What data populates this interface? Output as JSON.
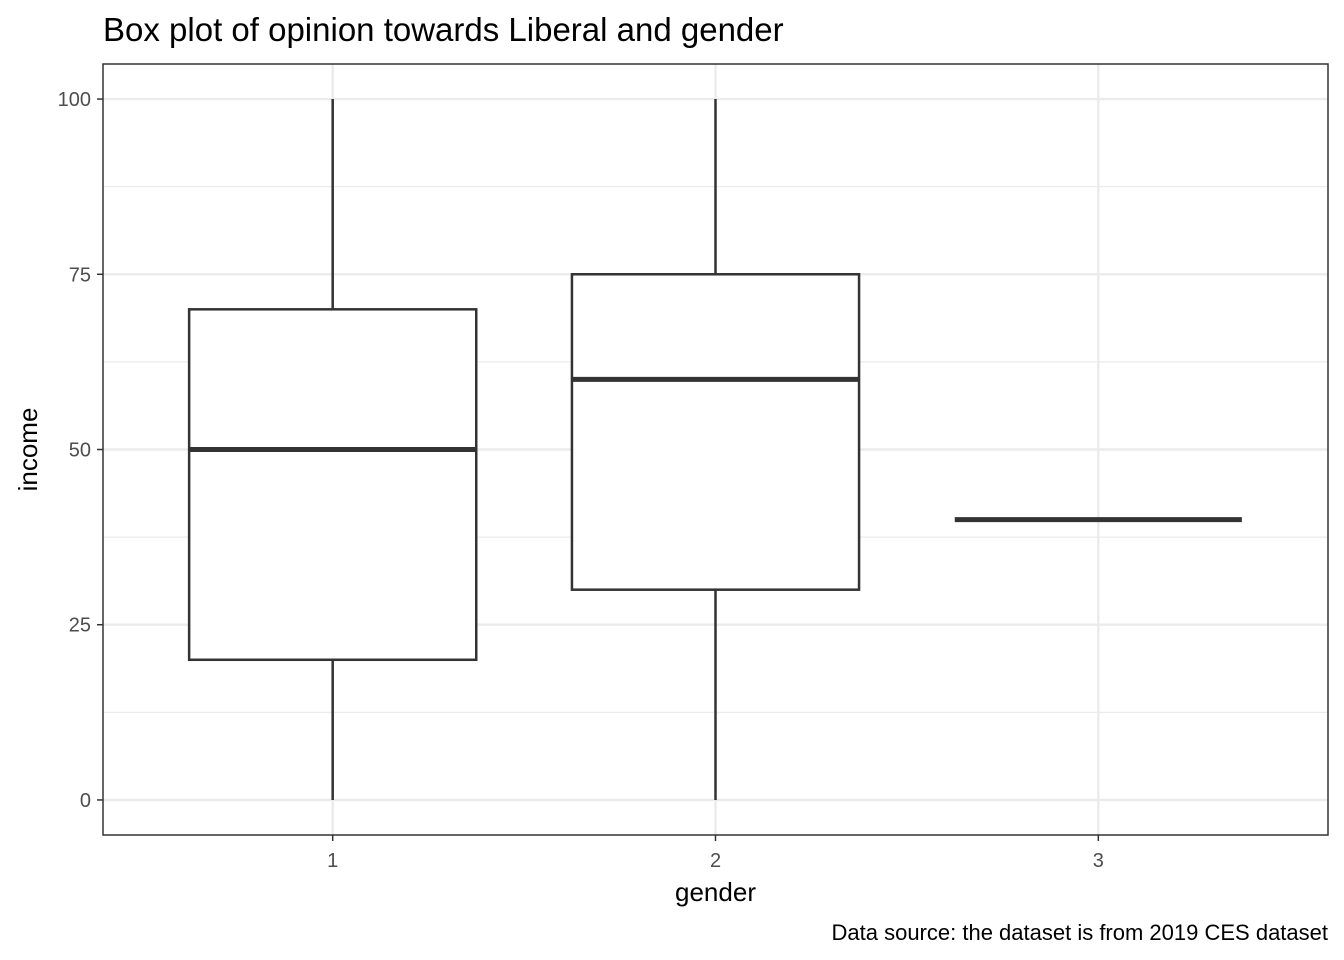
{
  "chart_data": {
    "type": "box",
    "title": "Box plot of opinion towards Liberal and gender",
    "xlabel": "gender",
    "ylabel": "income",
    "caption": "Data source: the dataset is from 2019 CES dataset",
    "categories": [
      "1",
      "2",
      "3"
    ],
    "boxes": [
      {
        "category": "1",
        "min": 0,
        "q1": 20,
        "median": 50,
        "q3": 70,
        "max": 100
      },
      {
        "category": "2",
        "min": 0,
        "q1": 30,
        "median": 60,
        "q3": 75,
        "max": 100
      },
      {
        "category": "3",
        "min": 40,
        "q1": 40,
        "median": 40,
        "q3": 40,
        "max": 40
      }
    ],
    "yticks": [
      0,
      25,
      50,
      75,
      100
    ],
    "ylim": [
      -5,
      105
    ],
    "grid": true,
    "box_stroke": "#333333",
    "grid_color": "#ebebeb",
    "panel_border": "#333333"
  }
}
